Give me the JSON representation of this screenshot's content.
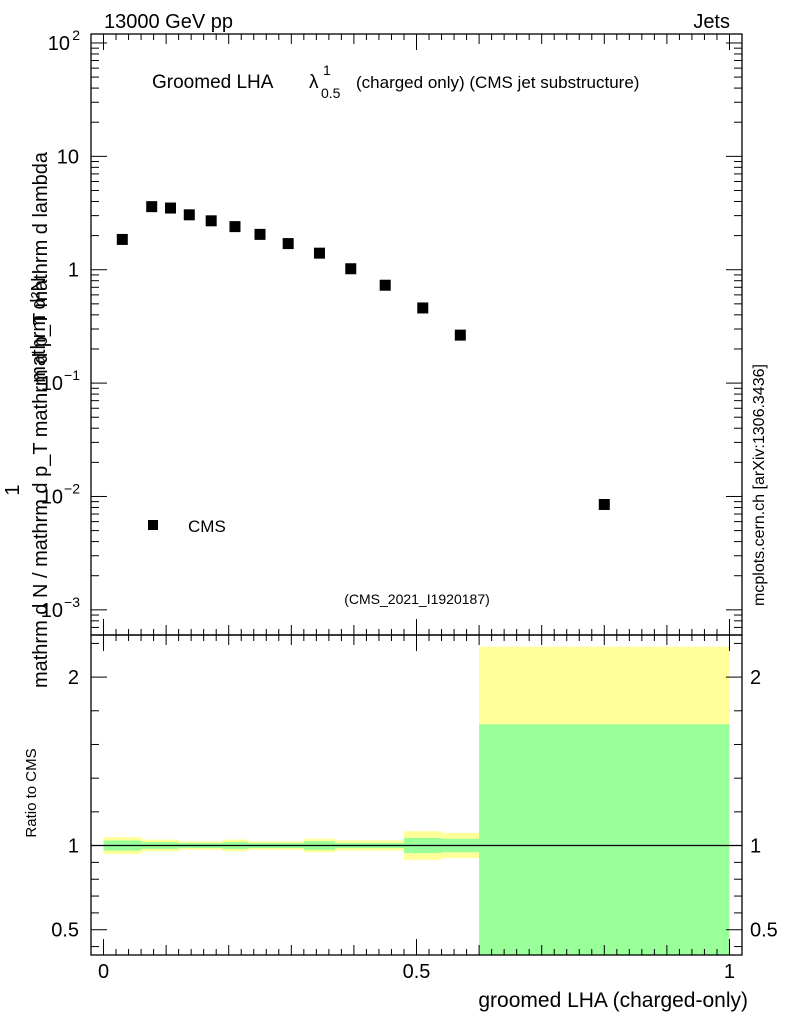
{
  "header": {
    "left": "13000 GeV pp",
    "right": "Jets"
  },
  "side_label": "mcplots.cern.ch [arXiv:1306.3436]",
  "chart_data": [
    {
      "type": "scatter",
      "title_main": "Groomed LHA",
      "title_symbol": "λ",
      "title_sup": "1",
      "title_sub": "0.5",
      "title_rest": "(charged only) (CMS jet substructure)",
      "ylabel_numerator": "mathrm d²N",
      "ylabel_denominator": "mathrm d N / mathrm d p_T mathrm d p_T mathrm d lambda",
      "ylabel_one": "1",
      "yscale": "log",
      "ylim": [
        0.0006,
        120
      ],
      "xlim": [
        -0.02,
        1.02
      ],
      "y_ticks": [
        {
          "value": 100,
          "label": "10",
          "exp": "2"
        },
        {
          "value": 10,
          "label": "10",
          "exp": ""
        },
        {
          "value": 1,
          "label": "1",
          "exp": ""
        },
        {
          "value": 0.1,
          "label": "10",
          "exp": "−1"
        },
        {
          "value": 0.01,
          "label": "10",
          "exp": "−2"
        },
        {
          "value": 0.001,
          "label": "10",
          "exp": "−3"
        }
      ],
      "series": [
        {
          "name": "CMS",
          "points": [
            {
              "x": 0.03,
              "y": 1.85
            },
            {
              "x": 0.077,
              "y": 3.6
            },
            {
              "x": 0.107,
              "y": 3.5
            },
            {
              "x": 0.137,
              "y": 3.05
            },
            {
              "x": 0.172,
              "y": 2.7
            },
            {
              "x": 0.21,
              "y": 2.4
            },
            {
              "x": 0.25,
              "y": 2.05
            },
            {
              "x": 0.295,
              "y": 1.7
            },
            {
              "x": 0.345,
              "y": 1.4
            },
            {
              "x": 0.395,
              "y": 1.02
            },
            {
              "x": 0.45,
              "y": 0.73
            },
            {
              "x": 0.51,
              "y": 0.46
            },
            {
              "x": 0.57,
              "y": 0.265
            },
            {
              "x": 0.8,
              "y": 0.0085
            }
          ]
        }
      ],
      "legend": [
        {
          "label": "CMS",
          "position": "lower-left"
        }
      ],
      "annotation": "(CMS_2021_I1920187)"
    },
    {
      "type": "area",
      "ylabel": "Ratio to CMS",
      "xlabel": "groomed LHA (charged-only)",
      "xlim": [
        -0.02,
        1.02
      ],
      "ylim": [
        0.35,
        2.25
      ],
      "y_ticks": [
        {
          "value": 2,
          "label": "2"
        },
        {
          "value": 1,
          "label": "1"
        },
        {
          "value": 0.5,
          "label": "0.5"
        }
      ],
      "x_ticks": [
        {
          "value": 0,
          "label": "0"
        },
        {
          "value": 0.5,
          "label": "0.5"
        },
        {
          "value": 1,
          "label": "1"
        }
      ],
      "reference_line": 1,
      "bins": [
        {
          "lo": 0.0,
          "hi": 0.06,
          "yellow": [
            0.95,
            1.05
          ],
          "green": [
            0.97,
            1.03
          ]
        },
        {
          "lo": 0.06,
          "hi": 0.12,
          "yellow": [
            0.965,
            1.035
          ],
          "green": [
            0.98,
            1.02
          ]
        },
        {
          "lo": 0.12,
          "hi": 0.19,
          "yellow": [
            0.975,
            1.025
          ],
          "green": [
            0.985,
            1.015
          ]
        },
        {
          "lo": 0.19,
          "hi": 0.23,
          "yellow": [
            0.965,
            1.035
          ],
          "green": [
            0.98,
            1.02
          ]
        },
        {
          "lo": 0.23,
          "hi": 0.32,
          "yellow": [
            0.975,
            1.025
          ],
          "green": [
            0.985,
            1.015
          ]
        },
        {
          "lo": 0.32,
          "hi": 0.37,
          "yellow": [
            0.96,
            1.04
          ],
          "green": [
            0.975,
            1.025
          ]
        },
        {
          "lo": 0.37,
          "hi": 0.48,
          "yellow": [
            0.97,
            1.03
          ],
          "green": [
            0.985,
            1.015
          ]
        },
        {
          "lo": 0.48,
          "hi": 0.54,
          "yellow": [
            0.915,
            1.085
          ],
          "green": [
            0.955,
            1.045
          ]
        },
        {
          "lo": 0.54,
          "hi": 0.6,
          "yellow": [
            0.925,
            1.075
          ],
          "green": [
            0.96,
            1.04
          ]
        },
        {
          "lo": 0.6,
          "hi": 1.0,
          "yellow": [
            0.35,
            2.18
          ],
          "green": [
            0.35,
            1.72
          ]
        }
      ],
      "colors": {
        "yellow": "#ffff99",
        "green": "#99ff99"
      }
    }
  ]
}
